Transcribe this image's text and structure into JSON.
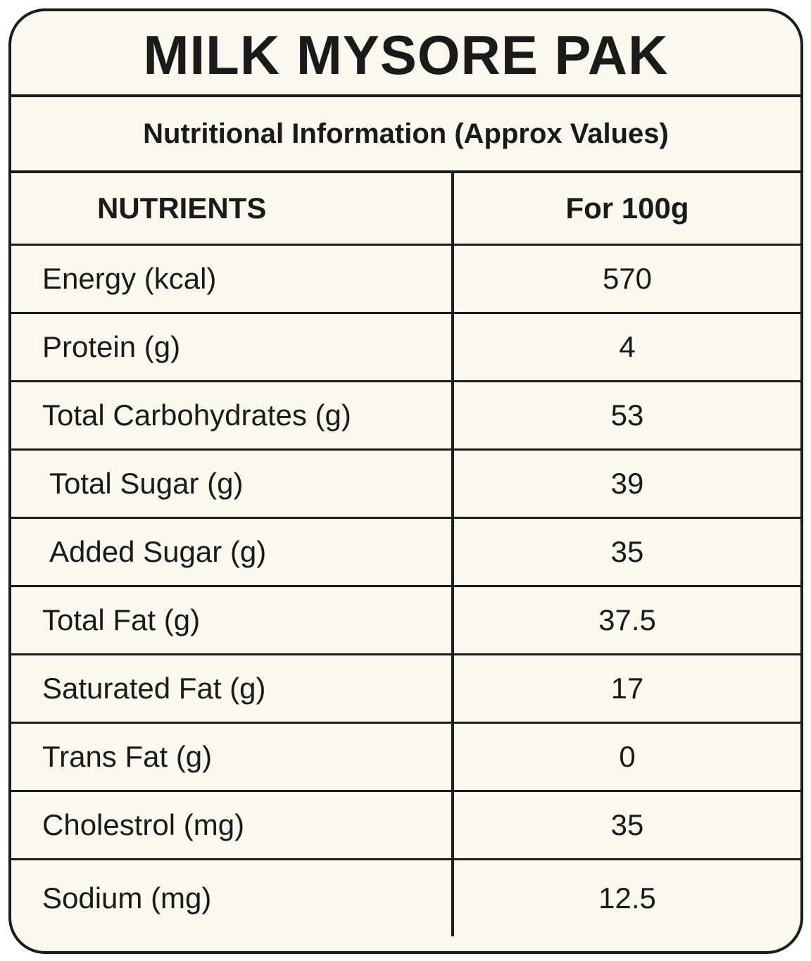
{
  "label": {
    "title": "MILK MYSORE PAK",
    "subtitle": "Nutritional Information (Approx Values)",
    "header": {
      "nutrients": "NUTRIENTS",
      "per": "For 100g"
    },
    "rows": [
      {
        "name": "Energy (kcal)",
        "value": "570"
      },
      {
        "name": "Protein (g)",
        "value": "4"
      },
      {
        "name": "Total Carbohydrates (g)",
        "value": "53"
      },
      {
        "name": "Total Sugar (g)",
        "value": "39"
      },
      {
        "name": "Added Sugar (g)",
        "value": "35"
      },
      {
        "name": "Total Fat (g)",
        "value": "37.5"
      },
      {
        "name": "Saturated Fat (g)",
        "value": "17"
      },
      {
        "name": "Trans Fat (g)",
        "value": "0"
      },
      {
        "name": "Cholestrol (mg)",
        "value": "35"
      },
      {
        "name": "Sodium (mg)",
        "value": "12.5"
      }
    ]
  },
  "colors": {
    "background": "#fbf8f0",
    "border": "#1c1c1c",
    "text": "#1a1a1a"
  }
}
